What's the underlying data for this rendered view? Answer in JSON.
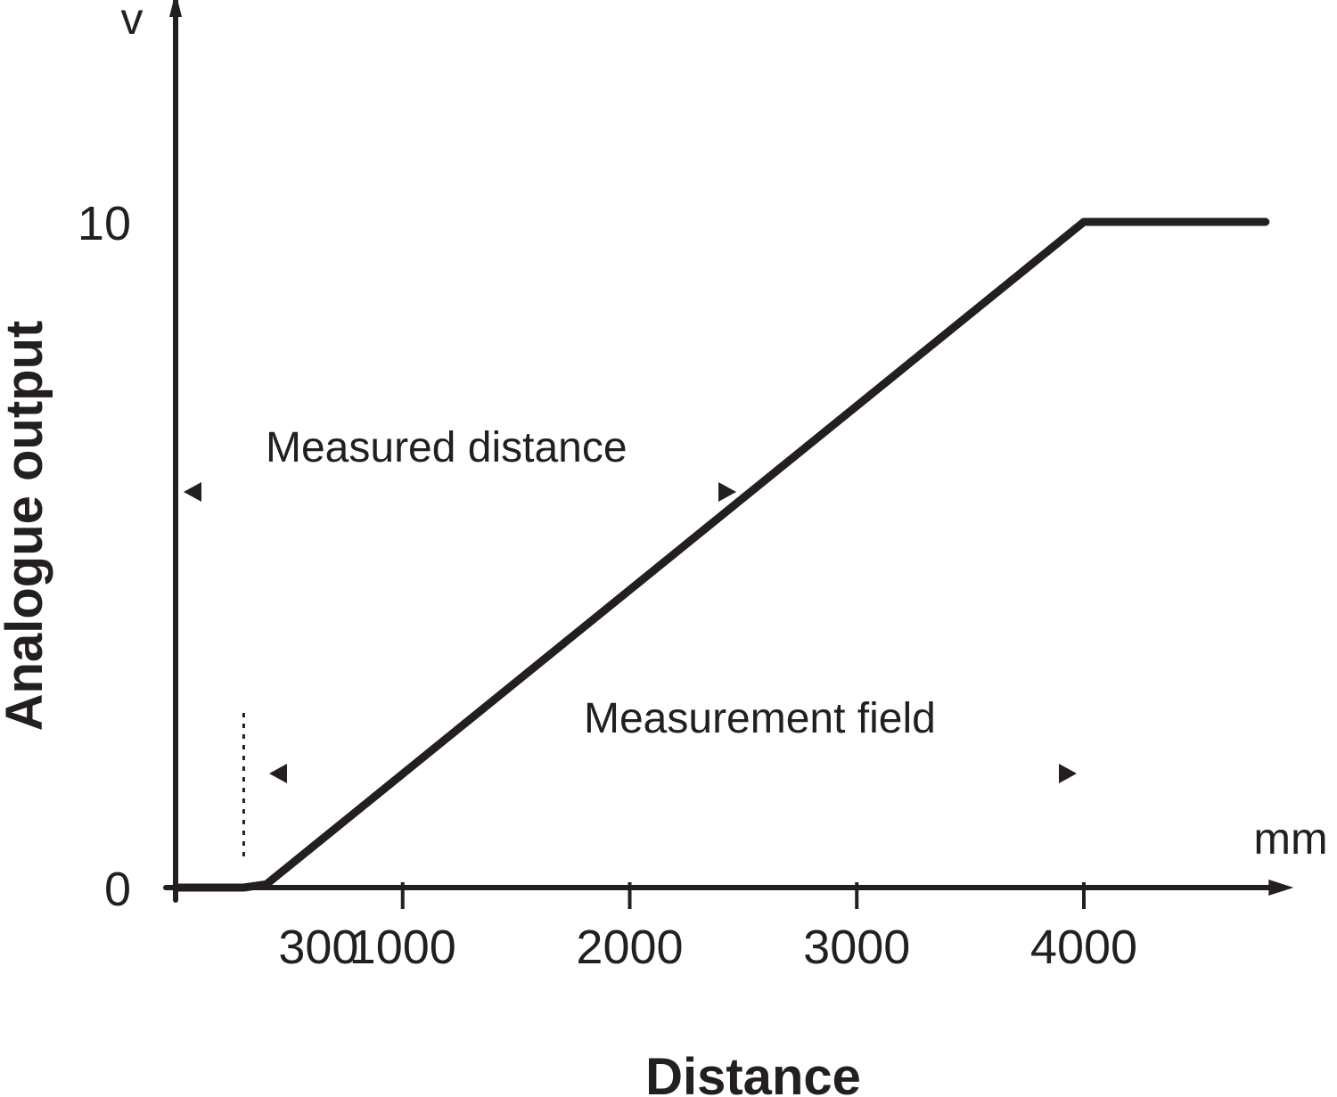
{
  "chart_data": {
    "type": "line",
    "title": "",
    "xlabel": "Distance",
    "ylabel": "Analogue output",
    "x_unit": "mm",
    "y_unit": "v",
    "x_ticks": [
      300,
      1000,
      2000,
      3000,
      4000
    ],
    "x_tick_labels": [
      "300",
      "1000",
      "2000",
      "3000",
      "4000"
    ],
    "y_ticks": [
      0,
      10
    ],
    "y_tick_labels": [
      "0",
      "10"
    ],
    "xlim": [
      0,
      4900
    ],
    "ylim": [
      0,
      13.4
    ],
    "grid": false,
    "series": [
      {
        "x": [
          0,
          300,
          400,
          4000,
          4050,
          4800
        ],
        "y": [
          0,
          0,
          0.05,
          10,
          10,
          10
        ]
      }
    ],
    "annotations": [
      "Measured distance",
      "Measurement field"
    ],
    "colors": {
      "ink": "#231f20",
      "background": "#ffffff"
    }
  }
}
